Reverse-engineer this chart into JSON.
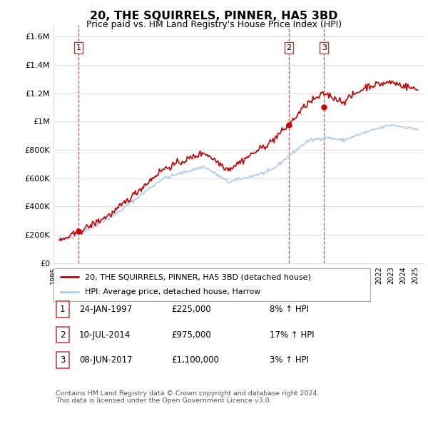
{
  "title": "20, THE SQUIRRELS, PINNER, HA5 3BD",
  "subtitle": "Price paid vs. HM Land Registry's House Price Index (HPI)",
  "ylabel_ticks": [
    "£0",
    "£200K",
    "£400K",
    "£600K",
    "£800K",
    "£1M",
    "£1.2M",
    "£1.4M",
    "£1.6M"
  ],
  "ytick_values": [
    0,
    200000,
    400000,
    600000,
    800000,
    1000000,
    1200000,
    1400000,
    1600000
  ],
  "ylim": [
    0,
    1680000
  ],
  "xlim_start": 1995.3,
  "xlim_end": 2025.7,
  "legend_line1": "20, THE SQUIRRELS, PINNER, HA5 3BD (detached house)",
  "legend_line2": "HPI: Average price, detached house, Harrow",
  "transaction1_label": "1",
  "transaction1_date": "24-JAN-1997",
  "transaction1_price": "£225,000",
  "transaction1_hpi": "8% ↑ HPI",
  "transaction1_year": 1997.07,
  "transaction1_value": 225000,
  "transaction2_label": "2",
  "transaction2_date": "10-JUL-2014",
  "transaction2_price": "£975,000",
  "transaction2_hpi": "17% ↑ HPI",
  "transaction2_year": 2014.52,
  "transaction2_value": 975000,
  "transaction3_label": "3",
  "transaction3_date": "08-JUN-2017",
  "transaction3_price": "£1,100,000",
  "transaction3_hpi": "3% ↑ HPI",
  "transaction3_year": 2017.43,
  "transaction3_value": 1100000,
  "footer1": "Contains HM Land Registry data © Crown copyright and database right 2024.",
  "footer2": "This data is licensed under the Open Government Licence v3.0.",
  "red_color": "#cc0000",
  "blue_color": "#aaccee",
  "vline_color": "#cc3333",
  "grid_color": "#dddddd",
  "background_color": "#ffffff"
}
